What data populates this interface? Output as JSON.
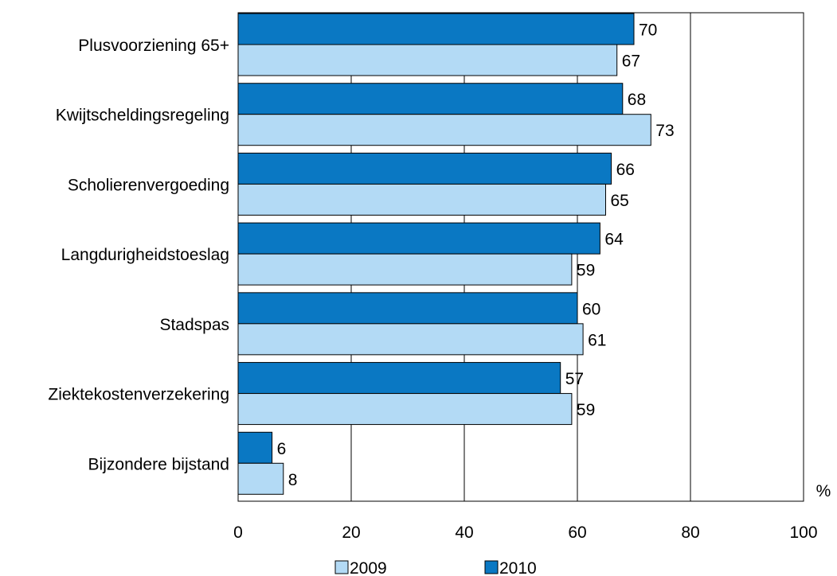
{
  "chart_data": {
    "type": "bar",
    "orientation": "horizontal",
    "categories": [
      "Plusvoorziening 65+",
      "Kwijtscheldingsregeling",
      "Scholierenvergoeding",
      "Langdurigheidstoeslag",
      "Stadspas",
      "Ziektekostenverzekering",
      "Bijzondere bijstand"
    ],
    "series": [
      {
        "name": "2010",
        "values": [
          70,
          68,
          66,
          64,
          60,
          57,
          6
        ],
        "color": "#0a78c3"
      },
      {
        "name": "2009",
        "values": [
          67,
          73,
          65,
          59,
          61,
          59,
          8
        ],
        "color": "#b3daf5"
      }
    ],
    "legend_order": [
      "2009",
      "2010"
    ],
    "legend_position": "bottom",
    "xlim": [
      0,
      100
    ],
    "xticks": [
      0,
      20,
      40,
      60,
      80,
      100
    ],
    "xlabel": "%",
    "grid": "vertical",
    "title": "",
    "ylabel": ""
  }
}
